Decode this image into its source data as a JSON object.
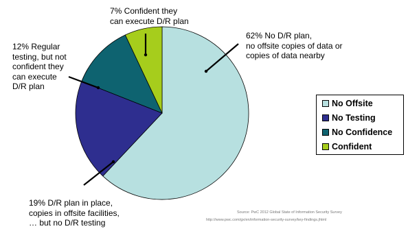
{
  "chart_data": {
    "type": "pie",
    "series": [
      {
        "name": "No Offsite",
        "value": 62,
        "color": "#b7e0e0"
      },
      {
        "name": "No Testing",
        "value": 19,
        "color": "#2e2e8f"
      },
      {
        "name": "No Confidence",
        "value": 12,
        "color": "#0e6370"
      },
      {
        "name": "Confident",
        "value": 7,
        "color": "#a6cd1c"
      }
    ],
    "annotations": [
      {
        "lines": [
          "7% Confident they",
          "can execute D/R plan"
        ]
      },
      {
        "lines": [
          "62% No D/R plan,",
          "no offsite copies of data or",
          "copies of data nearby"
        ]
      },
      {
        "lines": [
          "12% Regular",
          "testing, but not",
          "confident they",
          "can execute",
          "D/R plan"
        ]
      },
      {
        "lines": [
          "19% D/R plan in place,",
          "copies in offsite facilities,",
          "… but no D/R testing"
        ]
      }
    ],
    "legend": {
      "position": "right"
    }
  },
  "source": {
    "line1": "Source: PwC 2012 Global State of Information Security Survey",
    "line2": "http://www.pwc.com/gx/en/information-security-survey/key-findings.jhtml"
  }
}
